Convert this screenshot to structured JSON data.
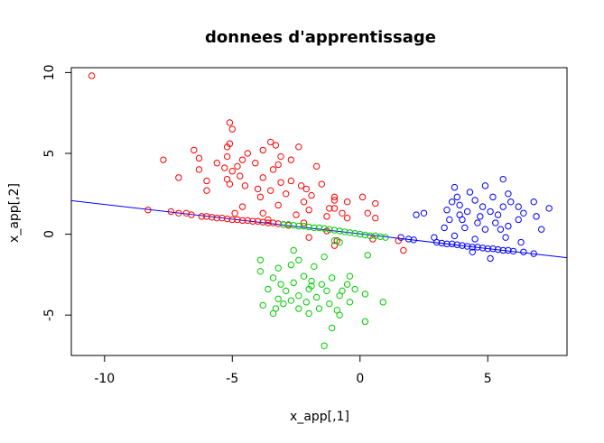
{
  "chart_data": {
    "type": "scatter",
    "title": "donnees d'apprentissage",
    "xlabel": "x_app[,1]",
    "ylabel": "x_app[,2]",
    "xlim": [
      -11.3,
      8.1
    ],
    "ylim": [
      -7.5,
      10.3
    ],
    "xticks": [
      -10,
      -5,
      0,
      5
    ],
    "yticks": [
      -5,
      0,
      5,
      10
    ],
    "grid": false,
    "legend": "none",
    "marker": "open-circle",
    "regression_line": {
      "color": "#0000ff",
      "slope": -0.182,
      "intercept": 0.02
    },
    "series": [
      {
        "color": "#ff0000",
        "points": [
          [
            -10.5,
            9.8
          ],
          [
            -5.1,
            6.9
          ],
          [
            -5.0,
            6.5
          ],
          [
            -5.1,
            5.6
          ],
          [
            -5.2,
            5.4
          ],
          [
            -3.5,
            5.7
          ],
          [
            -3.3,
            5.5
          ],
          [
            -2.4,
            5.4
          ],
          [
            -3.8,
            5.2
          ],
          [
            -4.4,
            5.0
          ],
          [
            -5.2,
            4.8
          ],
          [
            -3.1,
            4.8
          ],
          [
            -6.5,
            5.2
          ],
          [
            -6.3,
            4.7
          ],
          [
            -7.7,
            4.6
          ],
          [
            -5.6,
            4.4
          ],
          [
            -4.6,
            4.6
          ],
          [
            -4.8,
            4.2
          ],
          [
            -5.3,
            4.1
          ],
          [
            -6.3,
            4.0
          ],
          [
            -5.0,
            3.9
          ],
          [
            -4.1,
            4.4
          ],
          [
            -3.4,
            4.0
          ],
          [
            -3.2,
            4.3
          ],
          [
            -2.7,
            4.6
          ],
          [
            -1.7,
            4.2
          ],
          [
            -4.7,
            3.6
          ],
          [
            -5.2,
            3.4
          ],
          [
            -7.1,
            3.5
          ],
          [
            -6.0,
            3.3
          ],
          [
            -5.1,
            3.1
          ],
          [
            -4.5,
            3.0
          ],
          [
            -3.8,
            3.5
          ],
          [
            -3.1,
            3.2
          ],
          [
            -2.7,
            3.3
          ],
          [
            -2.3,
            3.0
          ],
          [
            -2.1,
            2.8
          ],
          [
            -1.5,
            3.1
          ],
          [
            -4.0,
            2.8
          ],
          [
            -3.5,
            2.7
          ],
          [
            -6.0,
            2.7
          ],
          [
            -2.9,
            2.5
          ],
          [
            -1.9,
            2.4
          ],
          [
            -1.0,
            2.3
          ],
          [
            -2.2,
            2.0
          ],
          [
            -1.0,
            2.1
          ],
          [
            0.1,
            2.3
          ],
          [
            -0.5,
            2.0
          ],
          [
            0.6,
            1.9
          ],
          [
            -3.2,
            1.8
          ],
          [
            -4.6,
            1.7
          ],
          [
            -1.2,
            1.6
          ],
          [
            -1.0,
            1.6
          ],
          [
            -2.0,
            1.5
          ],
          [
            -0.7,
            1.3
          ],
          [
            0.3,
            1.3
          ],
          [
            -4.9,
            1.3
          ],
          [
            -3.8,
            1.3
          ],
          [
            -2.5,
            1.2
          ],
          [
            -1.3,
            1.1
          ],
          [
            -0.5,
            1.0
          ],
          [
            0.6,
            1.0
          ],
          [
            -8.3,
            1.5
          ],
          [
            -7.4,
            1.4
          ],
          [
            -7.1,
            1.3
          ],
          [
            -6.8,
            1.3
          ],
          [
            -6.6,
            1.2
          ],
          [
            -6.2,
            1.1
          ],
          [
            -6.0,
            1.1
          ],
          [
            -5.8,
            1.05
          ],
          [
            -5.6,
            1.0
          ],
          [
            -5.4,
            1.0
          ],
          [
            -5.2,
            0.95
          ],
          [
            -5.0,
            0.9
          ],
          [
            -4.8,
            0.9
          ],
          [
            -4.6,
            0.85
          ],
          [
            -4.4,
            0.85
          ],
          [
            -4.2,
            0.8
          ],
          [
            -4.0,
            0.8
          ],
          [
            -3.8,
            0.75
          ],
          [
            -3.6,
            0.7
          ],
          [
            -3.4,
            0.7
          ],
          [
            -3.2,
            0.65
          ],
          [
            -3.0,
            0.6
          ],
          [
            -2.8,
            0.55
          ],
          [
            1.5,
            -0.4
          ],
          [
            1.7,
            -1.0
          ],
          [
            -1.0,
            -0.7
          ],
          [
            -0.9,
            -0.4
          ],
          [
            -1.3,
            0.2
          ],
          [
            -3.6,
            0.9
          ],
          [
            -2.2,
            0.7
          ],
          [
            -2.0,
            -0.2
          ],
          [
            -3.9,
            2.3
          ],
          [
            0.5,
            -0.3
          ]
        ]
      },
      {
        "color": "#00cc00",
        "points": [
          [
            -3.0,
            0.6
          ],
          [
            -2.8,
            0.6
          ],
          [
            -2.6,
            0.55
          ],
          [
            -2.4,
            0.5
          ],
          [
            -2.2,
            0.5
          ],
          [
            -2.0,
            0.45
          ],
          [
            -1.8,
            0.4
          ],
          [
            -1.6,
            0.4
          ],
          [
            -1.4,
            0.35
          ],
          [
            -1.2,
            0.3
          ],
          [
            -1.0,
            0.25
          ],
          [
            -0.8,
            0.2
          ],
          [
            -0.6,
            0.15
          ],
          [
            -0.4,
            0.1
          ],
          [
            -0.2,
            0.05
          ],
          [
            0.0,
            0.0
          ],
          [
            0.2,
            -0.05
          ],
          [
            0.4,
            -0.1
          ],
          [
            0.6,
            -0.1
          ],
          [
            0.8,
            -0.15
          ],
          [
            1.0,
            -0.2
          ],
          [
            -1.0,
            -0.4
          ],
          [
            -0.8,
            -0.5
          ],
          [
            0.3,
            -1.3
          ],
          [
            -2.6,
            -1.0
          ],
          [
            -1.4,
            -1.4
          ],
          [
            -2.4,
            -1.6
          ],
          [
            -3.9,
            -1.6
          ],
          [
            -2.7,
            -1.9
          ],
          [
            -3.2,
            -2.1
          ],
          [
            -1.8,
            -2.0
          ],
          [
            -3.9,
            -2.3
          ],
          [
            -2.2,
            -2.6
          ],
          [
            -3.4,
            -2.7
          ],
          [
            -1.1,
            -2.7
          ],
          [
            -0.4,
            -2.6
          ],
          [
            -2.6,
            -3.0
          ],
          [
            -3.1,
            -3.1
          ],
          [
            -1.9,
            -2.9
          ],
          [
            -1.5,
            -3.1
          ],
          [
            -0.5,
            -3.1
          ],
          [
            -3.6,
            -3.4
          ],
          [
            -2.9,
            -3.5
          ],
          [
            -2.0,
            -3.4
          ],
          [
            -1.3,
            -3.5
          ],
          [
            -0.2,
            -3.4
          ],
          [
            -2.4,
            -3.8
          ],
          [
            -3.2,
            -4.0
          ],
          [
            -1.7,
            -3.9
          ],
          [
            -0.8,
            -3.8
          ],
          [
            0.2,
            -3.7
          ],
          [
            -3.0,
            -4.3
          ],
          [
            -2.1,
            -4.2
          ],
          [
            -1.2,
            -4.3
          ],
          [
            -0.4,
            -4.2
          ],
          [
            0.9,
            -4.2
          ],
          [
            -3.3,
            -4.6
          ],
          [
            -2.4,
            -4.6
          ],
          [
            -1.6,
            -4.6
          ],
          [
            -0.9,
            -4.7
          ],
          [
            -3.4,
            -4.9
          ],
          [
            -2.0,
            -4.9
          ],
          [
            -0.8,
            -5.0
          ],
          [
            0.2,
            -5.4
          ],
          [
            -1.1,
            -5.8
          ],
          [
            -1.4,
            -6.9
          ],
          [
            -3.8,
            -4.4
          ],
          [
            -2.7,
            -4.1
          ],
          [
            -1.9,
            -3.2
          ],
          [
            -0.7,
            -3.5
          ]
        ]
      },
      {
        "color": "#0000ff",
        "points": [
          [
            5.6,
            3.4
          ],
          [
            4.9,
            3.0
          ],
          [
            3.7,
            2.9
          ],
          [
            4.3,
            2.6
          ],
          [
            5.8,
            2.5
          ],
          [
            3.8,
            2.3
          ],
          [
            5.2,
            2.3
          ],
          [
            4.5,
            2.1
          ],
          [
            3.6,
            2.0
          ],
          [
            5.9,
            2.0
          ],
          [
            6.8,
            2.0
          ],
          [
            3.9,
            1.8
          ],
          [
            4.8,
            1.7
          ],
          [
            5.6,
            1.7
          ],
          [
            6.2,
            1.7
          ],
          [
            7.4,
            1.6
          ],
          [
            3.4,
            1.5
          ],
          [
            4.2,
            1.4
          ],
          [
            5.1,
            1.4
          ],
          [
            6.4,
            1.3
          ],
          [
            2.5,
            1.3
          ],
          [
            2.2,
            1.2
          ],
          [
            3.9,
            1.2
          ],
          [
            4.7,
            1.1
          ],
          [
            5.4,
            1.2
          ],
          [
            6.9,
            1.1
          ],
          [
            6.2,
            0.9
          ],
          [
            3.5,
            0.9
          ],
          [
            4.6,
            0.7
          ],
          [
            5.3,
            0.7
          ],
          [
            5.8,
            0.5
          ],
          [
            4.1,
            0.4
          ],
          [
            3.3,
            0.4
          ],
          [
            4.9,
            0.3
          ],
          [
            5.5,
            0.3
          ],
          [
            7.1,
            0.3
          ],
          [
            2.9,
            -0.2
          ],
          [
            1.6,
            -0.2
          ],
          [
            1.9,
            -0.3
          ],
          [
            2.1,
            -0.35
          ],
          [
            3.0,
            -0.5
          ],
          [
            3.2,
            -0.55
          ],
          [
            3.4,
            -0.6
          ],
          [
            3.6,
            -0.6
          ],
          [
            3.8,
            -0.65
          ],
          [
            4.0,
            -0.7
          ],
          [
            4.2,
            -0.75
          ],
          [
            4.4,
            -0.8
          ],
          [
            4.6,
            -0.8
          ],
          [
            4.8,
            -0.85
          ],
          [
            5.0,
            -0.9
          ],
          [
            5.2,
            -0.9
          ],
          [
            5.4,
            -0.95
          ],
          [
            5.6,
            -1.0
          ],
          [
            5.8,
            -1.0
          ],
          [
            6.0,
            -1.05
          ],
          [
            6.4,
            -1.1
          ],
          [
            6.8,
            -1.2
          ],
          [
            5.1,
            -1.5
          ],
          [
            4.4,
            -1.1
          ],
          [
            3.7,
            -0.1
          ],
          [
            4.5,
            -0.3
          ],
          [
            5.7,
            -0.2
          ],
          [
            6.3,
            -0.5
          ],
          [
            4.0,
            0.9
          ]
        ]
      }
    ]
  }
}
